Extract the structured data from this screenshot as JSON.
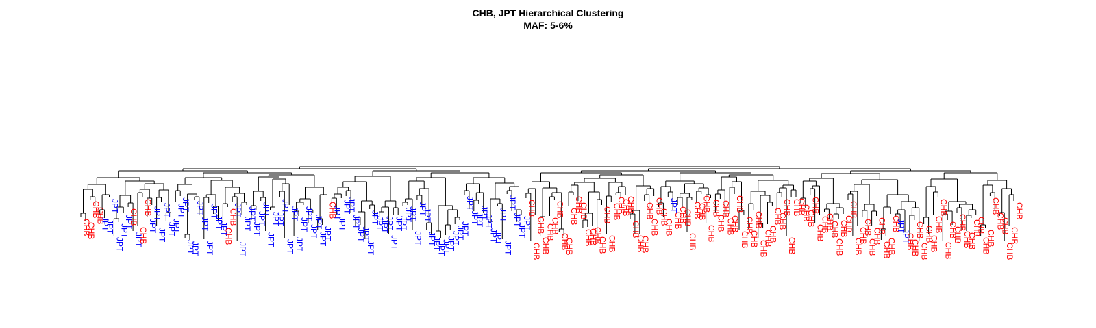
{
  "chart_data": {
    "type": "dendrogram",
    "title": "CHB, JPT Hierarchical Clustering",
    "subtitle": "MAF: 5-6%",
    "colors": {
      "CHB": "#ff0000",
      "JPT": "#0000ff"
    },
    "leaves": [
      "CHB",
      "CHB",
      "CHB",
      "CHB",
      "JPT",
      "JPT",
      "JPT",
      "JPT",
      "JPT",
      "JPT",
      "CHB",
      "JPT",
      "CHB",
      "CHB",
      "JPT",
      "JPT",
      "JPT",
      "JPT",
      "JPT",
      "JPT",
      "JPT",
      "JPT",
      "JPT",
      "JPT",
      "JPT",
      "JPT",
      "JPT",
      "JPT",
      "JPT",
      "JPT",
      "CHB",
      "CHB",
      "JPT",
      "JPT",
      "JPT",
      "JPT",
      "JPT",
      "JPT",
      "JPT",
      "JPT",
      "JPT",
      "JPT",
      "JPT",
      "JPT",
      "JPT",
      "JPT",
      "JPT",
      "JPT",
      "JPT",
      "JPT",
      "JPT",
      "JPT",
      "CHB",
      "JPT",
      "JPT",
      "JPT",
      "JPT",
      "JPT",
      "JPT",
      "JPT",
      "JPT",
      "JPT",
      "JPT",
      "JPT",
      "JPT",
      "JPT",
      "JPT",
      "JPT",
      "JPT",
      "JPT",
      "JPT",
      "JPT",
      "JPT",
      "JPT",
      "JPT",
      "JPT",
      "JPT",
      "JPT",
      "JPT",
      "JPT",
      "JPT",
      "JPT",
      "JPT",
      "JPT",
      "JPT",
      "JPT",
      "JPT",
      "JPT",
      "JPT",
      "JPT",
      "JPT",
      "JPT",
      "JPT",
      "JPT",
      "CHB",
      "CHB",
      "CHB",
      "CHB",
      "CHB",
      "CHB",
      "CHB",
      "CHB",
      "CHB",
      "CHB",
      "CHB",
      "CHB",
      "CHB",
      "CHB",
      "CHB",
      "CHB",
      "CHB",
      "CHB",
      "CHB",
      "CHB",
      "CHB",
      "CHB",
      "CHB",
      "CHB",
      "CHB",
      "CHB",
      "CHB",
      "CHB",
      "CHB",
      "CHB",
      "JPT",
      "CHB",
      "CHB",
      "CHB",
      "CHB",
      "CHB",
      "CHB",
      "CHB",
      "CHB",
      "CHB",
      "CHB",
      "CHB",
      "CHB",
      "CHB",
      "CHB",
      "CHB",
      "CHB",
      "CHB",
      "CHB",
      "CHB",
      "CHB",
      "CHB",
      "CHB",
      "CHB",
      "CHB",
      "CHB",
      "CHB",
      "CHB",
      "CHB",
      "CHB",
      "CHB",
      "CHB",
      "CHB",
      "CHB",
      "CHB",
      "CHB",
      "CHB",
      "CHB",
      "CHB",
      "CHB",
      "CHB",
      "CHB",
      "CHB",
      "CHB",
      "CHB",
      "CHB",
      "CHB",
      "CHB",
      "JPT",
      "JPT",
      "CHB",
      "CHB",
      "CHB",
      "CHB",
      "CHB",
      "CHB",
      "CHB",
      "CHB",
      "CHB",
      "CHB",
      "CHB",
      "CHB",
      "CHB",
      "CHB",
      "CHB",
      "CHB",
      "CHB",
      "CHB",
      "CHB",
      "CHB",
      "CHB",
      "CHB",
      "CHB",
      "CHB"
    ]
  }
}
